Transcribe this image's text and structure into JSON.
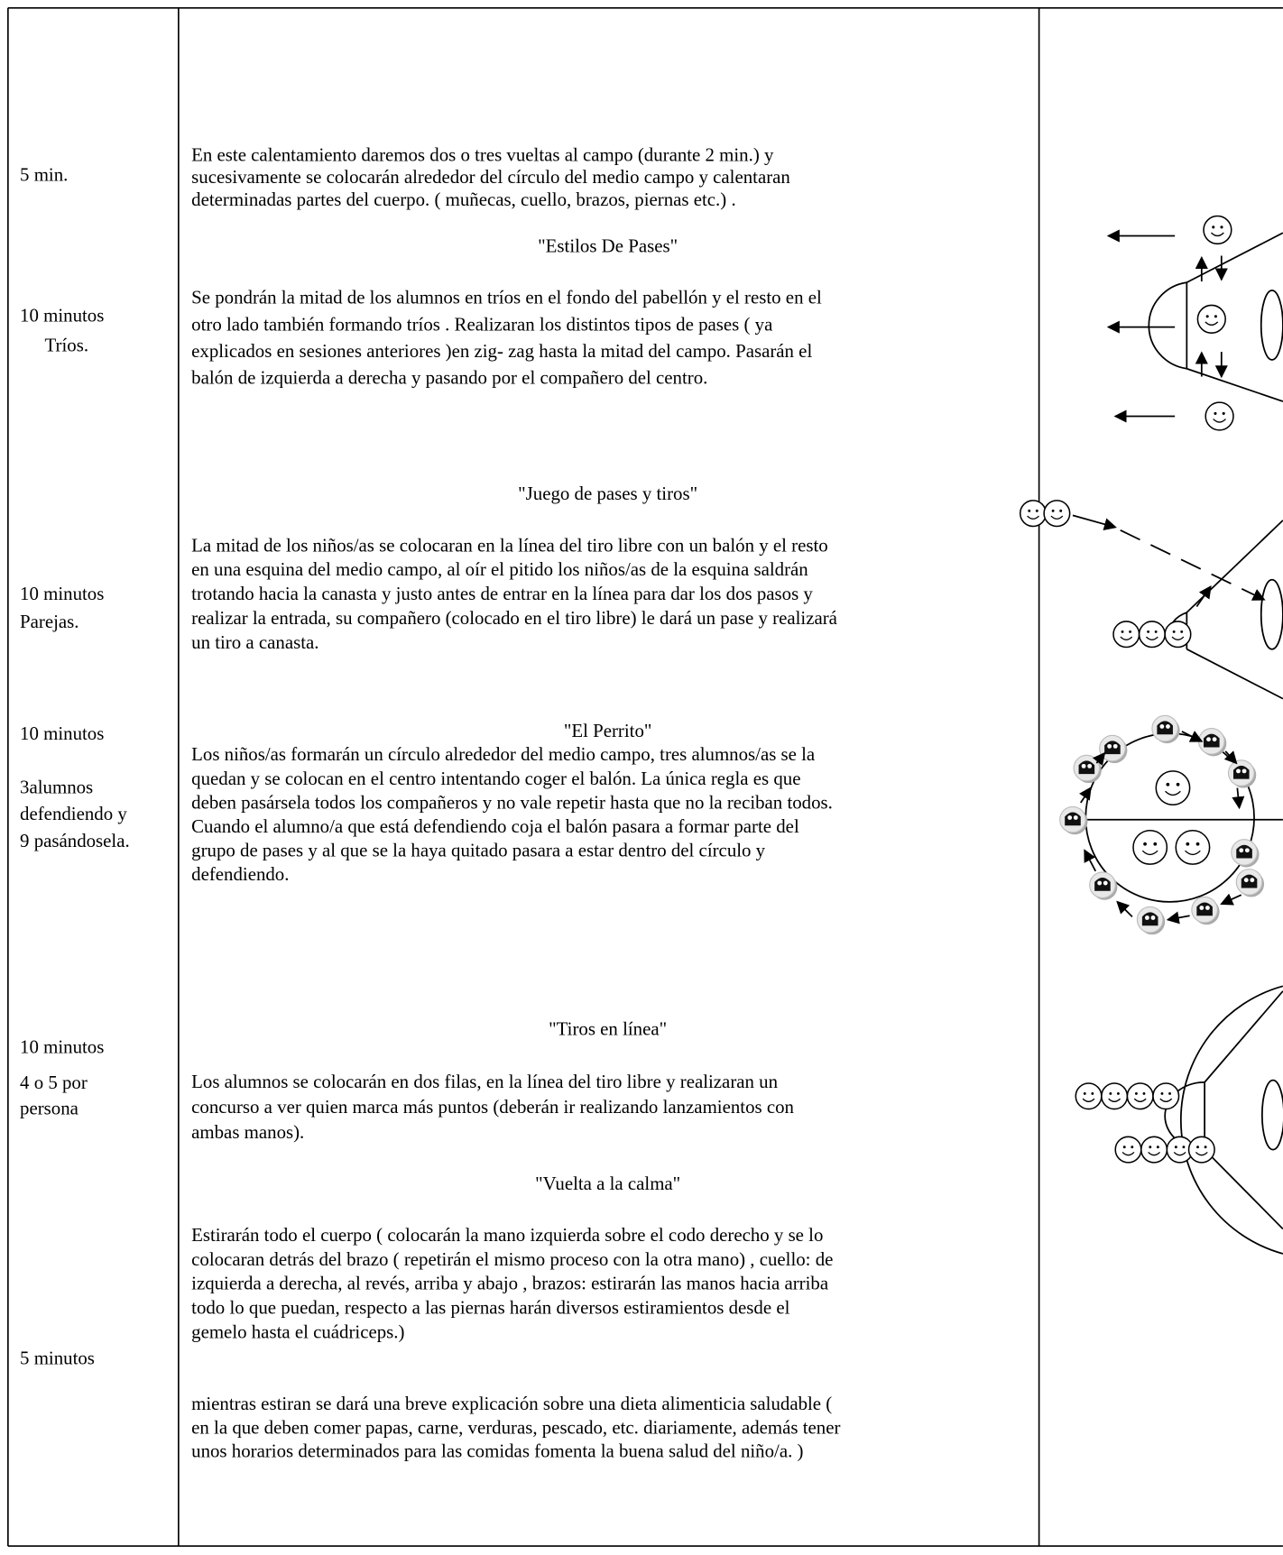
{
  "time_cells": [
    [
      "5 min."
    ],
    [
      "10 minutos",
      "Tríos."
    ],
    [
      "10 minutos",
      "Parejas."
    ],
    [
      "10 minutos",
      "3alumnos",
      "defendiendo  y",
      "9 pasándosela."
    ],
    [
      "10 minutos",
      "4 o 5 por",
      "persona"
    ],
    [
      "5 minutos"
    ]
  ],
  "activities": [
    {
      "lines": [
        "En este calentamiento daremos dos o tres vueltas al campo  (durante 2 min.) y",
        "sucesivamente se colocarán alrededor del círculo del medio campo y calentaran",
        "determinadas partes del cuerpo. ( muñecas, cuello, brazos, piernas etc.) ."
      ]
    },
    {
      "title": "\"Estilos De Pases\""
    },
    {
      "lines": [
        "Se pondrán la mitad de los alumnos en tríos en el fondo del pabellón y el resto en el",
        "otro lado también formando tríos . Realizaran los distintos tipos de pases ( ya",
        "explicados en sesiones anteriores )en zig- zag hasta la mitad del campo. Pasarán el",
        "balón de izquierda a derecha y pasando por el compañero del centro."
      ]
    },
    {
      "title": "\"Juego de pases y tiros\""
    },
    {
      "lines": [
        "La mitad de los niños/as se colocaran en la línea del tiro libre con un balón y el resto",
        "en una esquina del medio campo, al oír el pitido los niños/as de la esquina saldrán",
        "trotando hacia la canasta y justo antes de entrar en la línea para dar los dos pasos y",
        "realizar la entrada, su compañero (colocado en el tiro libre) le dará un pase y realizará",
        "un tiro a canasta."
      ]
    },
    {
      "title": "\"El Perrito\""
    },
    {
      "lines": [
        "Los niños/as  formarán un círculo alrededor del medio campo, tres alumnos/as se la",
        "quedan y se colocan en el centro intentando coger el balón. La única regla es que",
        "deben pasársela  todos los compañeros y no vale repetir hasta que no la reciban todos.",
        "Cuando el alumno/a que está defendiendo coja el balón pasara a formar parte del",
        "grupo de pases y al que se la haya quitado pasara a estar dentro del círculo y",
        "defendiendo."
      ]
    },
    {
      "title": "\"Tiros en línea\""
    },
    {
      "lines": [
        "Los alumnos se colocarán en dos filas, en la línea del tiro libre y realizaran un",
        "concurso a ver quien marca más puntos (deberán ir realizando lanzamientos con",
        "ambas manos)."
      ]
    },
    {
      "title": "\"Vuelta a la calma\""
    },
    {
      "lines": [
        "Estirarán todo el cuerpo ( colocarán la mano izquierda sobre el codo derecho y se lo",
        "colocaran detrás del brazo ( repetirán el mismo proceso con la otra mano) , cuello: de",
        "izquierda a derecha, al revés, arriba y abajo , brazos: estirarán las manos hacia arriba",
        "todo lo que puedan,  respecto a las piernas harán diversos estiramientos desde el",
        "gemelo hasta el cuádriceps.)"
      ]
    },
    {
      "lines": [
        "mientras estiran se dará una breve explicación sobre una dieta alimenticia saludable (",
        "en la que deben comer papas, carne, verduras, pescado, etc.  diariamente, además tener",
        "unos horarios determinados para las comidas fomenta la buena salud del niño/a. )"
      ]
    }
  ]
}
